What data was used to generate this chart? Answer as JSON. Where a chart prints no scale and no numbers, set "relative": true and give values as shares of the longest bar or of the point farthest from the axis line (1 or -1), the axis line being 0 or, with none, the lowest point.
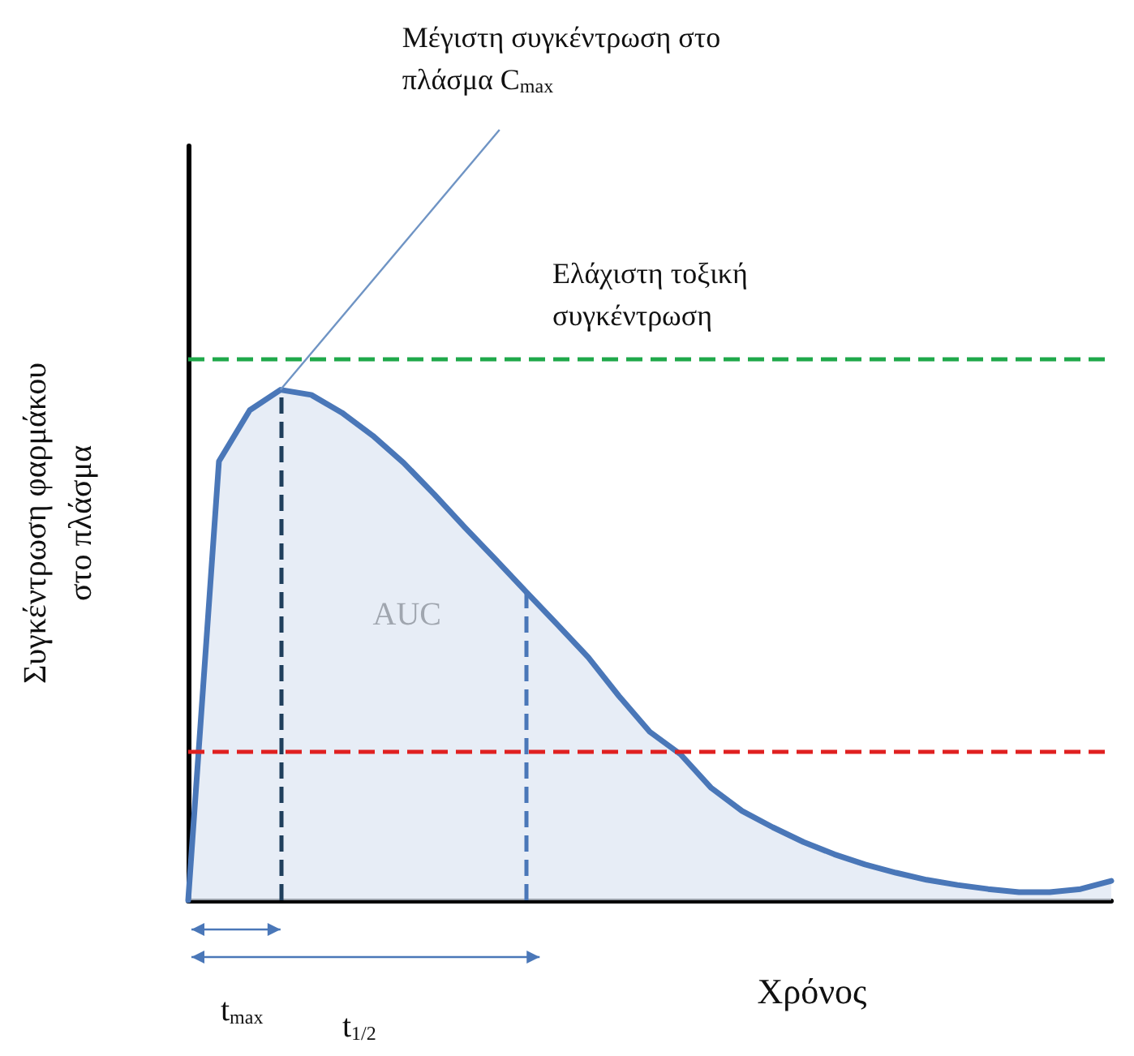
{
  "chart_data": {
    "type": "area",
    "relative": true,
    "xlabel": "Χρόνος",
    "ylabel": "Συγκέντρωση φαρμάκου στο πλάσμα",
    "categories": [
      null,
      null,
      null,
      null,
      null,
      null,
      null,
      null,
      null,
      null,
      null,
      null,
      null,
      null,
      null,
      null,
      null,
      null,
      null,
      null,
      null,
      null,
      null,
      null,
      null,
      null,
      null,
      null,
      null,
      null,
      null
    ],
    "series": [
      {
        "color": "#4a77b8",
        "values": [
          0,
          0.86,
          0.96,
          1.0,
          0.99,
          0.955,
          0.91,
          0.857,
          0.795,
          0.73,
          0.667,
          0.603,
          0.54,
          0.476,
          0.4,
          0.33,
          0.286,
          0.22,
          0.175,
          0.143,
          0.114,
          0.09,
          0.07,
          0.054,
          0.04,
          0.03,
          0.022,
          0.016,
          0.016,
          0.022,
          0.038
        ]
      }
    ],
    "ref_lines": [
      {
        "axis": "y",
        "value": 1.063,
        "label": "Ελάχιστη τοξική συγκέντρωση",
        "color": "#1fa84a",
        "line_style": "dashed"
      },
      {
        "axis": "y",
        "value": 0.295,
        "color": "#e02020",
        "line_style": "dashed"
      }
    ],
    "annotations": [
      "Μέγιστη συγκέντρωση στο πλάσμα C$_{max}$",
      "AUC",
      "t$_{max}$",
      "t$_{1/2}$"
    ]
  }
}
